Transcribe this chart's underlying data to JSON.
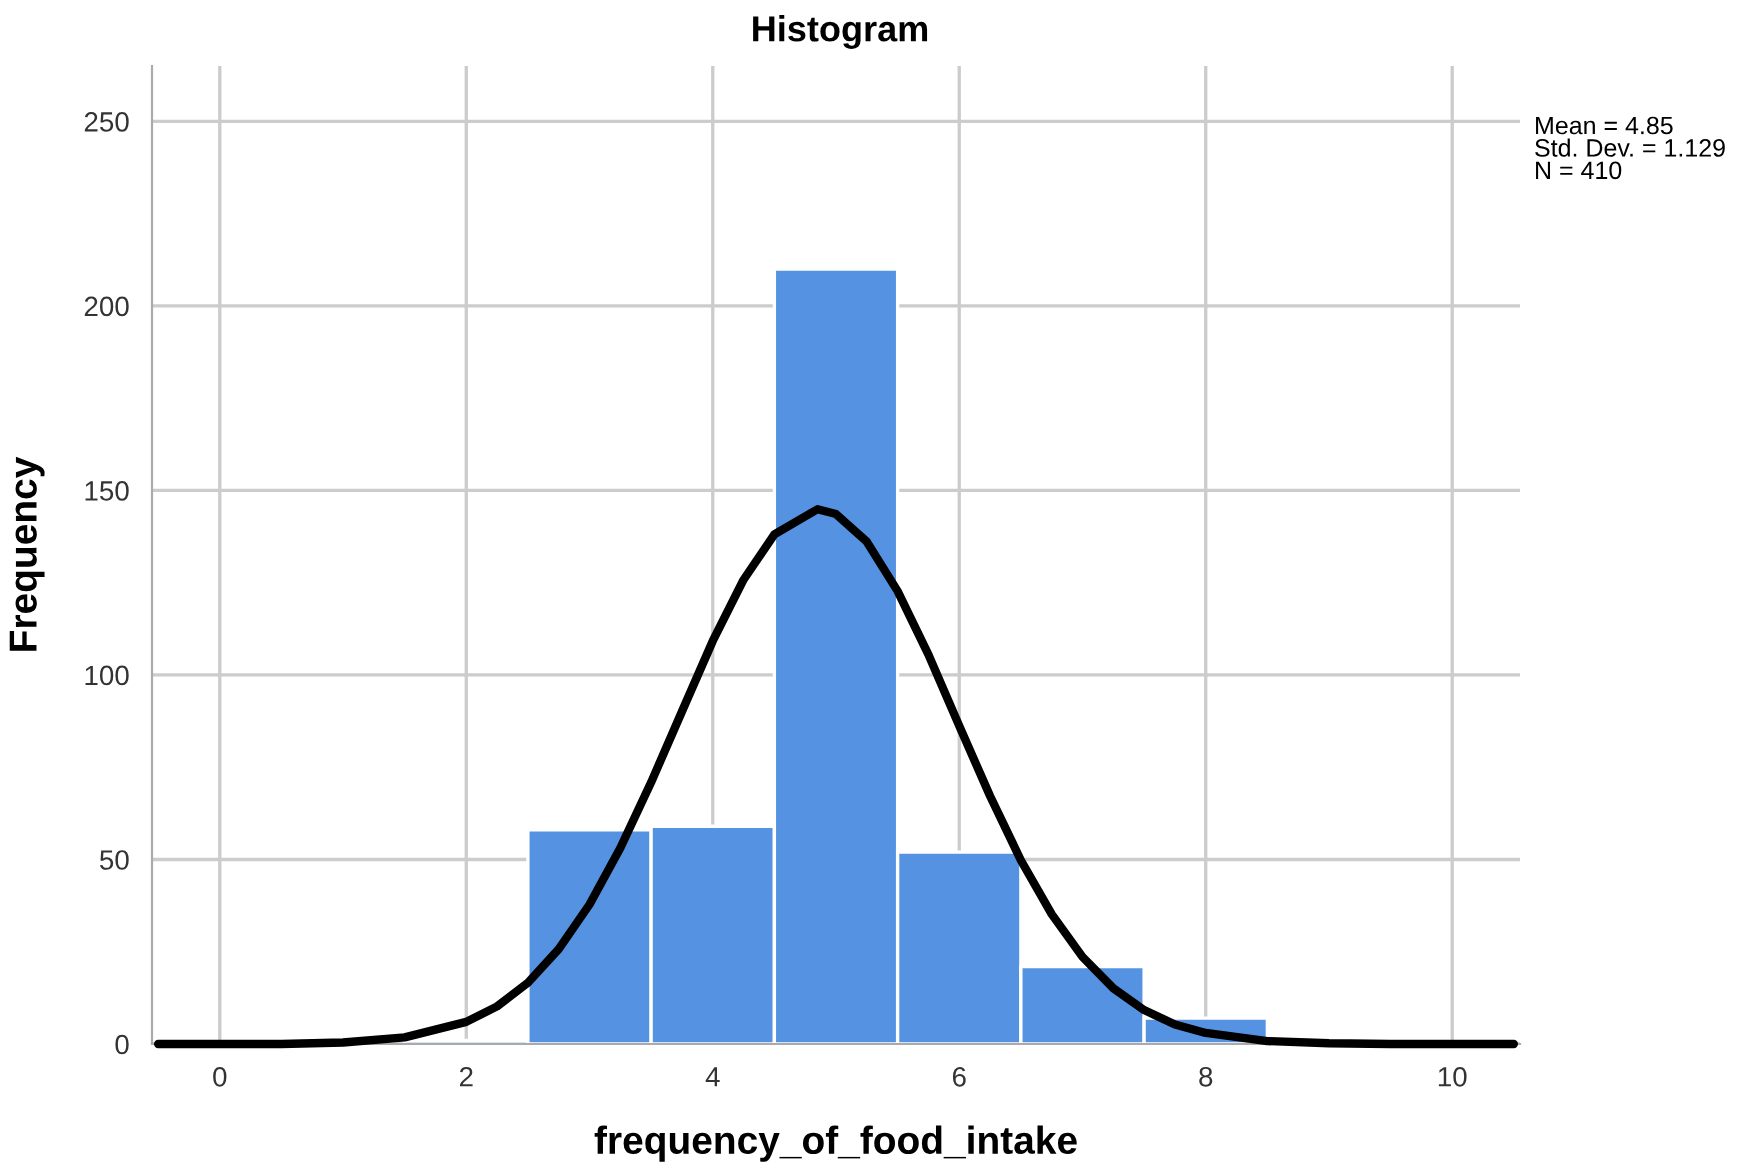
{
  "chart_data": {
    "type": "histogram",
    "title": "Histogram",
    "xlabel": "frequency_of_food_intake",
    "ylabel": "Frequency",
    "bins": [
      1.5,
      2.5,
      3.5,
      4.5,
      5.5,
      6.5,
      7.5,
      8.5
    ],
    "values": [
      1,
      58,
      59,
      210,
      52,
      21,
      7
    ],
    "color": "#5593e2",
    "series": [
      {
        "type": "line",
        "color": "#000000",
        "x": [
          -0.5,
          0,
          0.5,
          1,
          1.5,
          2,
          2.25,
          2.5,
          2.75,
          3,
          3.25,
          3.5,
          3.75,
          4,
          4.25,
          4.5,
          4.85,
          5,
          5.25,
          5.5,
          5.75,
          6,
          6.25,
          6.5,
          6.75,
          7,
          7.25,
          7.5,
          7.75,
          8,
          8.5,
          9,
          9.5,
          10,
          10.5
        ],
        "values": [
          0,
          0,
          0,
          0.4,
          1.8,
          6,
          10.2,
          16.6,
          25.7,
          37.8,
          53.1,
          70.9,
          90.1,
          109.2,
          125.8,
          138.1,
          144.9,
          143.6,
          136.1,
          122.7,
          105.5,
          86.2,
          67.2,
          49.8,
          35.2,
          23.6,
          15.1,
          9.2,
          5.3,
          3,
          0.8,
          0.2,
          0,
          0,
          0
        ]
      }
    ],
    "annotations": [
      "Mean = 4.85\nStd. Dev. = 1.129\nN = 410"
    ],
    "xlim": [
      -0.55,
      10.55
    ],
    "ylim": [
      0,
      265
    ],
    "xticks": [
      0,
      2,
      4,
      6,
      8,
      10
    ],
    "yticks": [
      0,
      50,
      100,
      150,
      200,
      250
    ],
    "grid": true
  }
}
